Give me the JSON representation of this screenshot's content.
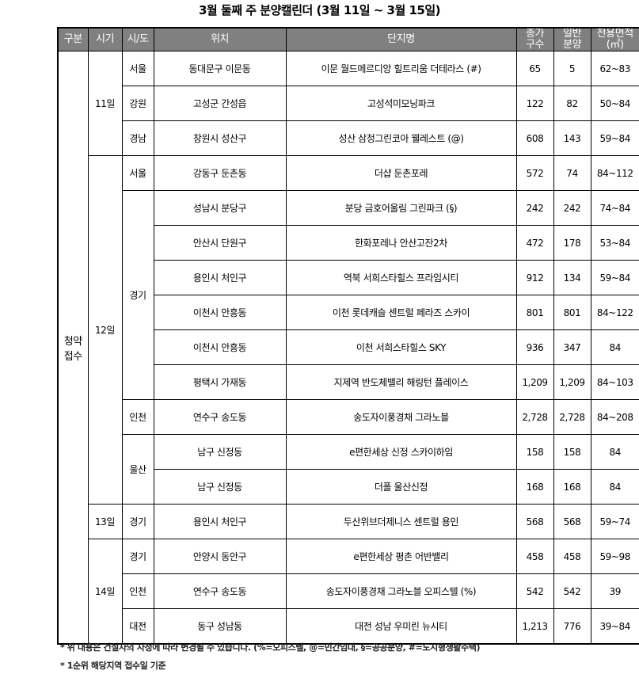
{
  "title": "3월 둘째 주 분양캘린더 (3월 11일 ~ 3월 15일)",
  "headers": {
    "category": "구분",
    "date": "시기",
    "region": "시/도",
    "location": "위치",
    "name": "단지명",
    "total_1": "총가",
    "total_2": "구수",
    "general_1": "일반",
    "general_2": "분양",
    "area_1": "전용면적",
    "area_2": "(㎡)"
  },
  "category": "청약\n접수",
  "dates": [
    {
      "label": "11일",
      "rows": 3
    },
    {
      "label": "12일",
      "rows": 10
    },
    {
      "label": "13일",
      "rows": 1
    },
    {
      "label": "14일",
      "rows": 3
    }
  ],
  "regions": [
    {
      "label": "서울",
      "rows": 1
    },
    {
      "label": "강원",
      "rows": 1
    },
    {
      "label": "경남",
      "rows": 1
    },
    {
      "label": "서울",
      "rows": 1
    },
    {
      "label": "경기",
      "rows": 6
    },
    {
      "label": "인천",
      "rows": 1
    },
    {
      "label": "울산",
      "rows": 2
    },
    {
      "label": "경기",
      "rows": 1
    },
    {
      "label": "경기",
      "rows": 1
    },
    {
      "label": "인천",
      "rows": 1
    },
    {
      "label": "대전",
      "rows": 1
    }
  ],
  "rows": [
    {
      "location": "동대문구 이문동",
      "name": "이문 월드메르디앙 힐트리움 더테라스 (#)",
      "total": "65",
      "general": "5",
      "area": "62~83"
    },
    {
      "location": "고성군 간성읍",
      "name": "고성석미모닝파크",
      "total": "122",
      "general": "82",
      "area": "50~84"
    },
    {
      "location": "창원시 성산구",
      "name": "성산 삼정그린코아 웰레스트 (@)",
      "total": "608",
      "general": "143",
      "area": "59~84"
    },
    {
      "location": "강동구 둔촌동",
      "name": "더샵 둔촌포레",
      "total": "572",
      "general": "74",
      "area": "84~112"
    },
    {
      "location": "성남시 분당구",
      "name": "분당 금호어울림 그린파크 (§)",
      "total": "242",
      "general": "242",
      "area": "74~84"
    },
    {
      "location": "안산시 단원구",
      "name": "한화포레나 안산고잔2차",
      "total": "472",
      "general": "178",
      "area": "53~84"
    },
    {
      "location": "용인시 처인구",
      "name": "역북 서희스타힐스 프라임시티",
      "total": "912",
      "general": "134",
      "area": "59~84"
    },
    {
      "location": "이천시 안흥동",
      "name": "이천 롯데캐슬 센트럴 페라즈 스카이",
      "total": "801",
      "general": "801",
      "area": "84~122"
    },
    {
      "location": "이천시 안흥동",
      "name": "이천 서희스타힐스 SKY",
      "total": "936",
      "general": "347",
      "area": "84"
    },
    {
      "location": "평택시 가재동",
      "name": "지제역 반도체밸리 해링턴 플레이스",
      "total": "1,209",
      "general": "1,209",
      "area": "84~103"
    },
    {
      "location": "연수구 송도동",
      "name": "송도자이풍경채 그라노블",
      "total": "2,728",
      "general": "2,728",
      "area": "84~208"
    },
    {
      "location": "남구 신정동",
      "name": "e편한세상 신정 스카이하임",
      "total": "158",
      "general": "158",
      "area": "84"
    },
    {
      "location": "남구 신정동",
      "name": "더폴 울산신정",
      "total": "168",
      "general": "168",
      "area": "84"
    },
    {
      "location": "용인시 처인구",
      "name": "두산위브더제니스 센트럴 용인",
      "total": "568",
      "general": "568",
      "area": "59~74"
    },
    {
      "location": "안양시 동안구",
      "name": "e편한세상 평촌 어반밸리",
      "total": "458",
      "general": "458",
      "area": "59~98"
    },
    {
      "location": "연수구 송도동",
      "name": "송도자이풍경채 그라노블 오피스텔 (%)",
      "total": "542",
      "general": "542",
      "area": "39"
    },
    {
      "location": "동구 성남동",
      "name": "대전 성남 우미린 뉴시티",
      "total": "1,213",
      "general": "776",
      "area": "39~84"
    }
  ],
  "notes": [
    "* 위 내용은 건설사의 사정에 따라 변경될 수 있습니다. (%=오피스텔, @=민간임대, §=공공분양, #=도시형생활주택)",
    "* 1순위 해당지역 접수일 기준"
  ]
}
